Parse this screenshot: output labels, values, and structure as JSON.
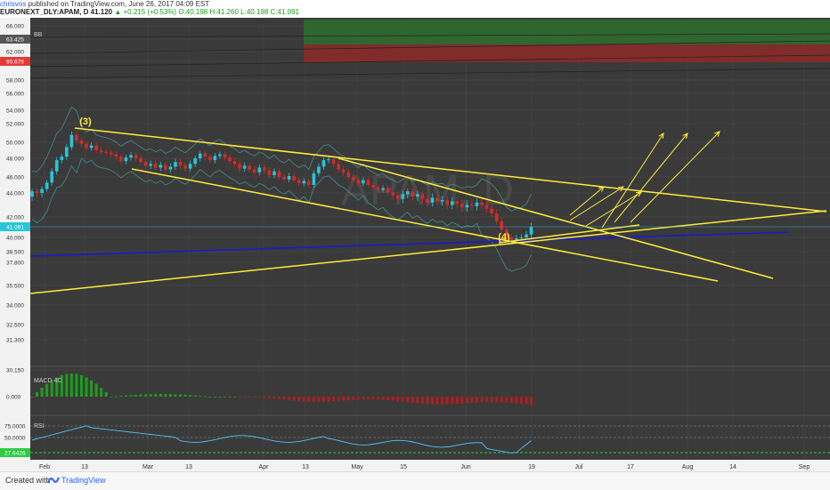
{
  "header": {
    "author": "chrisvos",
    "published": "published on TradingView.com, June 26, 2017 04:09 EST",
    "symbol": "EURONEXT_DLY:APAM, D",
    "last": "41.120",
    "change": "▲ +0.215 (+0.53%)",
    "ohlc": "O:40.198 H:41.260 L:40.198 C:41.091"
  },
  "footer": {
    "created": "Created with",
    "brand": "TradingView"
  },
  "colors": {
    "background": "#3a3a3a",
    "grid": "#4a4a4a",
    "up": "#26c6da",
    "down": "#d42a2a",
    "annotation": "#ffeb3b",
    "trendline_blue": "#1a1acc",
    "bb_band": "#4aa3a3",
    "macd_up": "#1e9e1e",
    "macd_down": "#b01e1e",
    "rsi_line": "#4fc3f7",
    "rsi_level": "#2ecc40"
  },
  "chart_data": {
    "type": "candlestick",
    "indicator_label": "BB",
    "watermark": "APAM, D",
    "y_ticks": [
      "66.000",
      "63.425",
      "62.000",
      "60.676",
      "58.000",
      "56.000",
      "54.000",
      "52.000",
      "50.000",
      "48.000",
      "46.000",
      "44.000",
      "42.000",
      "41.091",
      "40.000",
      "38.500",
      "37.800",
      "35.500",
      "34.000",
      "32.500",
      "31.300",
      "30.150"
    ],
    "price_markers": [
      {
        "label": "63.425",
        "kind": "dark"
      },
      {
        "label": "60.676",
        "kind": "red"
      },
      {
        "label": "41.091",
        "kind": "cyan"
      }
    ],
    "x_ticks": [
      "Feb",
      "13",
      "Mar",
      "13",
      "Apr",
      "13",
      "May",
      "15",
      "Jun",
      "19",
      "Jul",
      "17",
      "Aug",
      "14",
      "Sep"
    ],
    "annotations": [
      {
        "text": "(3)",
        "date_index": 4
      },
      {
        "text": "(4)",
        "date_index": 98
      }
    ],
    "macd": {
      "label": "MACD 4C",
      "y_tick": "0.000"
    },
    "rsi": {
      "label": "RSI",
      "y_ticks": [
        "75.0000",
        "50.0000",
        "27.6426"
      ]
    }
  }
}
